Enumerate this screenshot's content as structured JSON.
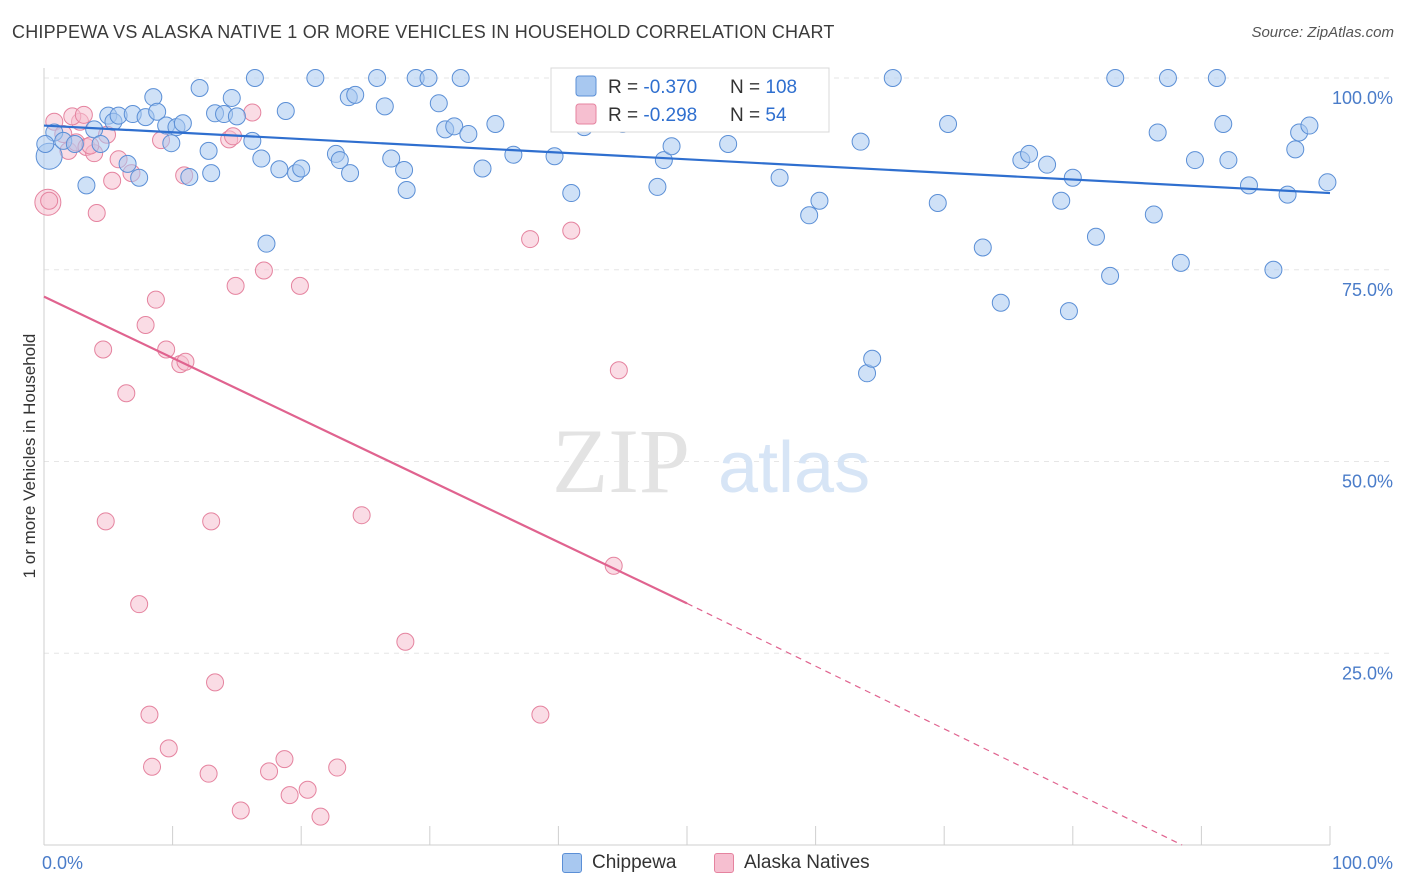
{
  "title": "CHIPPEWA VS ALASKA NATIVE 1 OR MORE VEHICLES IN HOUSEHOLD CORRELATION CHART",
  "source": "Source: ZipAtlas.com",
  "watermark": {
    "zip": "ZIP",
    "atlas": "atlas"
  },
  "colors": {
    "blue": "#a8c8f0",
    "blue_edge": "#5b8fd6",
    "blue_line": "#2f6fcf",
    "pink": "#f6bfd0",
    "pink_edge": "#e5839f",
    "pink_line": "#e0638f",
    "tick": "#4a7cc9"
  },
  "legend": {
    "rows": [
      {
        "r_label": "R = ",
        "r_value": "-0.370",
        "n_label": "N = ",
        "n_value": "108"
      },
      {
        "r_label": "R = ",
        "r_value": "-0.298",
        "n_label": "N = ",
        "n_value": "54"
      }
    ]
  },
  "chart_data": {
    "type": "scatter",
    "ylabel": "1 or more Vehicles in Household",
    "xlim": [
      0,
      100
    ],
    "ylim": [
      0,
      100
    ],
    "x_tick_labels": [
      "0.0%",
      "100.0%"
    ],
    "y_tick_labels": [
      "100.0%",
      "75.0%",
      "50.0%",
      "25.0%"
    ],
    "y_tick_values": [
      100,
      75,
      50,
      25
    ],
    "series": [
      {
        "name": "Chippewa",
        "trend": {
          "x0": 0,
          "y0": 93.8,
          "x1": 100,
          "y1": 85.0,
          "dashed_from": null
        },
        "points": [
          [
            0.4,
            89.8
          ],
          [
            0.8,
            92.9
          ],
          [
            1.5,
            91.8
          ],
          [
            2.4,
            91.4
          ],
          [
            3.3,
            86.0
          ],
          [
            3.9,
            93.3
          ],
          [
            4.4,
            91.4
          ],
          [
            5,
            95.1
          ],
          [
            5.4,
            94.3
          ],
          [
            5.8,
            95.1
          ],
          [
            6.5,
            88.8
          ],
          [
            6.9,
            95.3
          ],
          [
            7.4,
            87.0
          ],
          [
            7.9,
            94.9
          ],
          [
            8.5,
            97.5
          ],
          [
            8.8,
            95.6
          ],
          [
            9.5,
            93.8
          ],
          [
            9.9,
            91.5
          ],
          [
            10.3,
            93.6
          ],
          [
            10.8,
            94.1
          ],
          [
            11.3,
            87.1
          ],
          [
            12.1,
            98.7
          ],
          [
            12.8,
            90.5
          ],
          [
            13.0,
            87.6
          ],
          [
            13.3,
            95.4
          ],
          [
            14.0,
            95.3
          ],
          [
            14.6,
            97.4
          ],
          [
            15.0,
            95.0
          ],
          [
            16.2,
            91.8
          ],
          [
            16.4,
            100.0
          ],
          [
            16.9,
            89.5
          ],
          [
            17.3,
            78.4
          ],
          [
            18.3,
            88.1
          ],
          [
            18.8,
            95.7
          ],
          [
            19.6,
            87.6
          ],
          [
            20.0,
            88.2
          ],
          [
            21.1,
            100.0
          ],
          [
            22.7,
            90.1
          ],
          [
            23.0,
            89.3
          ],
          [
            23.7,
            97.5
          ],
          [
            23.8,
            87.6
          ],
          [
            24.2,
            97.8
          ],
          [
            25.9,
            100.0
          ],
          [
            27.0,
            89.5
          ],
          [
            28.0,
            88.0
          ],
          [
            28.2,
            85.4
          ],
          [
            28.9,
            100.0
          ],
          [
            29.9,
            100.0
          ],
          [
            30.7,
            96.7
          ],
          [
            31.2,
            93.3
          ],
          [
            31.9,
            93.7
          ],
          [
            32.4,
            100.0
          ],
          [
            33.0,
            92.7
          ],
          [
            34.1,
            88.2
          ],
          [
            35.1,
            94.0
          ],
          [
            36.5,
            90.0
          ],
          [
            39.7,
            89.8
          ],
          [
            41.0,
            85.0
          ],
          [
            42.0,
            93.6
          ],
          [
            43.3,
            94.4
          ],
          [
            44.1,
            96.5
          ],
          [
            44.5,
            100.0
          ],
          [
            45.0,
            94.0
          ],
          [
            47.7,
            85.8
          ],
          [
            48.2,
            89.3
          ],
          [
            48.8,
            91.1
          ],
          [
            50.2,
            94.8
          ],
          [
            52.7,
            100.0
          ],
          [
            53.2,
            91.4
          ],
          [
            55.6,
            95.0
          ],
          [
            57.2,
            87.0
          ],
          [
            58.1,
            94.6
          ],
          [
            59.5,
            82.1
          ],
          [
            60.3,
            84.0
          ],
          [
            63.5,
            91.7
          ],
          [
            64.0,
            61.5
          ],
          [
            64.4,
            63.4
          ],
          [
            66.0,
            100.0
          ],
          [
            69.5,
            83.7
          ],
          [
            70.3,
            94.0
          ],
          [
            73.0,
            77.9
          ],
          [
            74.4,
            70.7
          ],
          [
            76.0,
            89.3
          ],
          [
            76.6,
            90.1
          ],
          [
            78.0,
            88.7
          ],
          [
            79.1,
            84.0
          ],
          [
            79.7,
            69.6
          ],
          [
            80.0,
            87.0
          ],
          [
            81.8,
            79.3
          ],
          [
            82.9,
            74.2
          ],
          [
            83.3,
            100.0
          ],
          [
            86.3,
            82.2
          ],
          [
            86.6,
            92.9
          ],
          [
            87.4,
            100.0
          ],
          [
            88.4,
            75.9
          ],
          [
            89.5,
            89.3
          ],
          [
            91.2,
            100.0
          ],
          [
            91.7,
            94.0
          ],
          [
            92.1,
            89.3
          ],
          [
            93.7,
            86.0
          ],
          [
            95.6,
            75.0
          ],
          [
            96.7,
            84.8
          ],
          [
            97.3,
            90.7
          ],
          [
            97.6,
            92.9
          ],
          [
            98.4,
            93.8
          ],
          [
            99.8,
            86.4
          ],
          [
            0.1,
            91.4
          ],
          [
            26.5,
            96.3
          ]
        ]
      },
      {
        "name": "Alaska Natives",
        "trend": {
          "x0": 0,
          "y0": 71.5,
          "x1": 50,
          "y1": 31.5,
          "dashed_from": 50,
          "dashed_to_x": 88.5,
          "dashed_to_y": 0
        },
        "points": [
          [
            0.3,
            83.8
          ],
          [
            0.8,
            94.3
          ],
          [
            1.5,
            92.7
          ],
          [
            1.9,
            90.5
          ],
          [
            2.5,
            91.6
          ],
          [
            2.8,
            94.3
          ],
          [
            3.3,
            91.0
          ],
          [
            3.9,
            90.2
          ],
          [
            4.1,
            82.4
          ],
          [
            4.6,
            64.6
          ],
          [
            4.8,
            42.2
          ],
          [
            5.3,
            86.6
          ],
          [
            5.8,
            89.4
          ],
          [
            6.4,
            58.9
          ],
          [
            6.8,
            87.6
          ],
          [
            7.4,
            31.4
          ],
          [
            7.9,
            67.8
          ],
          [
            8.2,
            17.0
          ],
          [
            8.4,
            10.2
          ],
          [
            8.7,
            71.1
          ],
          [
            9.1,
            91.9
          ],
          [
            9.5,
            64.6
          ],
          [
            9.7,
            12.6
          ],
          [
            10.6,
            62.7
          ],
          [
            10.9,
            87.3
          ],
          [
            11.0,
            63.0
          ],
          [
            12.8,
            9.3
          ],
          [
            13.0,
            42.2
          ],
          [
            13.3,
            21.2
          ],
          [
            14.4,
            92.0
          ],
          [
            14.7,
            92.4
          ],
          [
            14.9,
            72.9
          ],
          [
            15.3,
            4.5
          ],
          [
            16.2,
            95.5
          ],
          [
            17.1,
            74.9
          ],
          [
            17.5,
            9.6
          ],
          [
            18.7,
            11.2
          ],
          [
            19.1,
            6.5
          ],
          [
            19.9,
            72.9
          ],
          [
            20.5,
            7.2
          ],
          [
            21.5,
            3.7
          ],
          [
            22.8,
            10.1
          ],
          [
            24.7,
            43.0
          ],
          [
            28.1,
            26.5
          ],
          [
            37.8,
            79.0
          ],
          [
            38.6,
            17.0
          ],
          [
            41.0,
            80.1
          ],
          [
            44.3,
            36.4
          ],
          [
            44.7,
            61.9
          ],
          [
            0.4,
            84.0
          ],
          [
            2.2,
            95.0
          ],
          [
            3.6,
            91.2
          ],
          [
            4.9,
            92.6
          ],
          [
            3.1,
            95.2
          ]
        ]
      }
    ]
  }
}
